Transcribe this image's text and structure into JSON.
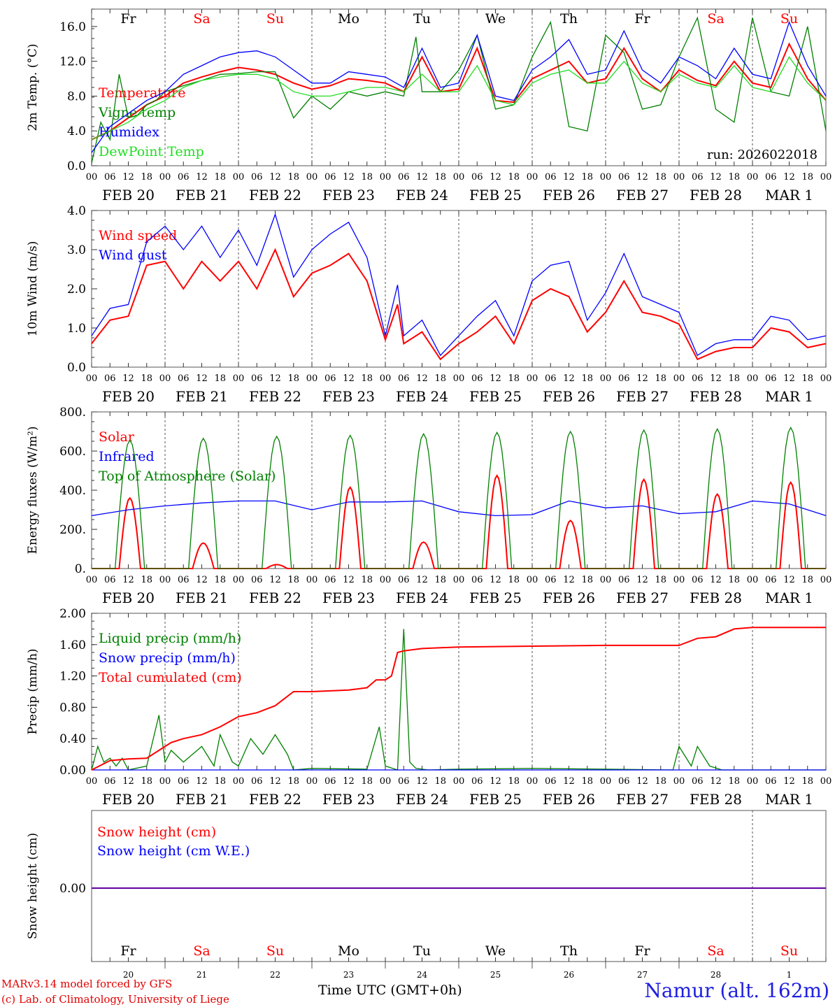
{
  "run_label": "run: 2026022018",
  "weekdays_top": [
    "Fr",
    "Sa",
    "Su",
    "Mo",
    "Tu",
    "We",
    "Th",
    "Fr",
    "Sa",
    "Su"
  ],
  "weekend_days": [
    "Sa",
    "Su"
  ],
  "date_labels": [
    "FEB 20",
    "FEB 21",
    "FEB 22",
    "FEB 23",
    "FEB 24",
    "FEB 25",
    "FEB 26",
    "FEB 27",
    "FEB 28",
    "MAR  1"
  ],
  "hour_labels": [
    "00",
    "06",
    "12",
    "18"
  ],
  "bottom_day_numbers": [
    "20",
    "21",
    "22",
    "23",
    "24",
    "25",
    "26",
    "27",
    "28",
    "1"
  ],
  "footer": {
    "model_line": "MARv3.14 model forced by GFS",
    "credit_line": "(c) Lab. of Climatology, University of Liege",
    "time_axis": "Time UTC (GMT+0h)",
    "location": "Namur (alt. 162m)"
  },
  "colors": {
    "red": "#ff0000",
    "blue": "#0000ff",
    "green": "#008000",
    "lightgreen": "#22dd22",
    "weekday": "#000000",
    "weekend": "#ff0000"
  },
  "chart_data": [
    {
      "type": "line",
      "ylabel": "2m Temp. (°C)",
      "ylim": [
        0,
        18
      ],
      "yticks": [
        "0.0",
        "4.0",
        "8.0",
        "12.0",
        "16.0"
      ],
      "x_unit": "hours since FEB 20 00 UTC",
      "series": [
        {
          "name": "Temperature",
          "color": "red",
          "x": [
            0,
            6,
            12,
            18,
            24,
            30,
            36,
            42,
            48,
            54,
            60,
            66,
            72,
            78,
            84,
            90,
            96,
            102,
            108,
            114,
            120,
            126,
            132,
            138,
            144,
            150,
            156,
            162,
            168,
            174,
            180,
            186,
            192,
            198,
            204,
            210,
            216,
            222,
            228,
            234,
            240
          ],
          "values": [
            3.0,
            4.0,
            5.5,
            7.0,
            8.0,
            9.5,
            10.2,
            10.8,
            11.3,
            11.0,
            10.5,
            9.5,
            8.8,
            9.2,
            10.0,
            9.8,
            9.5,
            8.5,
            12.5,
            8.5,
            8.8,
            13.5,
            7.5,
            7.3,
            10.0,
            11.0,
            12.0,
            9.5,
            10.0,
            13.5,
            10.0,
            8.5,
            11.0,
            9.8,
            9.2,
            12.0,
            9.5,
            9.0,
            14.0,
            10.0,
            7.5
          ]
        },
        {
          "name": "Vigne temp",
          "color": "green",
          "x": [
            0,
            3,
            6,
            9,
            12,
            15,
            18,
            21,
            24,
            30,
            36,
            42,
            48,
            54,
            60,
            66,
            72,
            78,
            84,
            90,
            96,
            102,
            106,
            108,
            114,
            120,
            126,
            132,
            138,
            144,
            150,
            156,
            162,
            168,
            174,
            180,
            186,
            192,
            198,
            204,
            210,
            216,
            222,
            228,
            234,
            240
          ],
          "values": [
            0.3,
            5.0,
            3.0,
            10.5,
            5.5,
            5.8,
            7.0,
            7.5,
            8.5,
            9.2,
            9.8,
            10.5,
            10.6,
            10.8,
            10.8,
            5.5,
            8.0,
            6.5,
            8.5,
            8.0,
            8.5,
            8.0,
            14.8,
            8.5,
            8.5,
            11.0,
            15.0,
            6.5,
            7.0,
            12.5,
            16.5,
            4.5,
            4.0,
            15.0,
            13.0,
            6.5,
            7.0,
            12.5,
            17.0,
            6.5,
            5.0,
            17.0,
            8.5,
            8.0,
            16.0,
            4.0
          ]
        },
        {
          "name": "Humidex",
          "color": "blue",
          "x": [
            0,
            6,
            12,
            18,
            24,
            30,
            36,
            42,
            48,
            54,
            60,
            66,
            72,
            78,
            84,
            90,
            96,
            102,
            108,
            114,
            120,
            126,
            132,
            138,
            144,
            150,
            156,
            162,
            168,
            174,
            180,
            186,
            192,
            198,
            204,
            210,
            216,
            222,
            228,
            234,
            240
          ],
          "values": [
            1.5,
            4.5,
            6.0,
            7.5,
            8.5,
            10.5,
            11.5,
            12.5,
            13.0,
            13.2,
            12.5,
            11.0,
            9.5,
            9.5,
            10.8,
            10.5,
            10.2,
            9.0,
            13.5,
            9.0,
            9.5,
            15.0,
            8.0,
            7.5,
            11.0,
            12.5,
            14.5,
            10.5,
            11.0,
            15.5,
            11.0,
            9.5,
            12.5,
            11.5,
            10.0,
            13.5,
            10.5,
            10.0,
            16.5,
            11.5,
            8.0
          ]
        },
        {
          "name": "DewPoint Temp",
          "color": "lightgreen",
          "x": [
            0,
            6,
            12,
            18,
            24,
            30,
            36,
            42,
            48,
            54,
            60,
            66,
            72,
            78,
            84,
            90,
            96,
            102,
            108,
            114,
            120,
            126,
            132,
            138,
            144,
            150,
            156,
            162,
            168,
            174,
            180,
            186,
            192,
            198,
            204,
            210,
            216,
            222,
            228,
            234,
            240
          ],
          "values": [
            3.0,
            4.0,
            5.0,
            6.5,
            7.5,
            9.0,
            9.8,
            10.2,
            10.5,
            10.5,
            10.0,
            8.5,
            8.0,
            8.0,
            8.5,
            9.0,
            9.0,
            8.5,
            10.5,
            8.5,
            8.5,
            11.5,
            7.5,
            7.0,
            9.5,
            10.5,
            11.0,
            9.5,
            9.5,
            12.0,
            9.5,
            8.5,
            10.5,
            9.5,
            9.0,
            11.5,
            9.0,
            8.5,
            12.5,
            9.5,
            7.5
          ]
        }
      ]
    },
    {
      "type": "line",
      "ylabel": "10m Wind (m/s)",
      "ylim": [
        0,
        4
      ],
      "yticks": [
        "0.0",
        "1.0",
        "2.0",
        "3.0",
        "4.0"
      ],
      "series": [
        {
          "name": "Wind speed",
          "color": "red",
          "x": [
            0,
            6,
            12,
            18,
            24,
            30,
            36,
            42,
            48,
            54,
            60,
            66,
            72,
            78,
            84,
            90,
            96,
            100,
            102,
            108,
            114,
            120,
            126,
            132,
            138,
            144,
            150,
            156,
            162,
            168,
            174,
            180,
            186,
            192,
            198,
            204,
            210,
            216,
            222,
            228,
            234,
            240
          ],
          "values": [
            0.6,
            1.2,
            1.3,
            2.6,
            2.7,
            2.0,
            2.7,
            2.2,
            2.7,
            2.0,
            3.0,
            1.8,
            2.4,
            2.6,
            2.9,
            2.2,
            0.7,
            1.6,
            0.6,
            0.9,
            0.2,
            0.6,
            0.9,
            1.3,
            0.6,
            1.7,
            2.0,
            1.8,
            0.9,
            1.4,
            2.2,
            1.4,
            1.3,
            1.1,
            0.2,
            0.4,
            0.5,
            0.5,
            1.0,
            0.9,
            0.5,
            0.6
          ]
        },
        {
          "name": "Wind gust",
          "color": "blue",
          "x": [
            0,
            6,
            12,
            18,
            24,
            30,
            36,
            42,
            48,
            54,
            60,
            66,
            72,
            78,
            84,
            90,
            96,
            100,
            102,
            108,
            114,
            120,
            126,
            132,
            138,
            144,
            150,
            156,
            162,
            168,
            174,
            180,
            186,
            192,
            198,
            204,
            210,
            216,
            222,
            228,
            234,
            240
          ],
          "values": [
            0.8,
            1.5,
            1.6,
            3.2,
            3.6,
            3.0,
            3.6,
            2.8,
            3.5,
            2.6,
            3.9,
            2.3,
            3.0,
            3.4,
            3.7,
            2.8,
            0.8,
            2.1,
            0.8,
            1.2,
            0.3,
            0.8,
            1.3,
            1.7,
            0.8,
            2.2,
            2.6,
            2.7,
            1.2,
            1.9,
            2.9,
            1.8,
            1.6,
            1.4,
            0.3,
            0.6,
            0.7,
            0.7,
            1.3,
            1.2,
            0.7,
            0.8
          ]
        }
      ]
    },
    {
      "type": "line",
      "ylabel": "Energy fluxes (W/m²)",
      "ylim": [
        0,
        800
      ],
      "yticks": [
        "0.",
        "200.",
        "400.",
        "600.",
        "800."
      ],
      "series": [
        {
          "name": "Solar",
          "color": "red",
          "day_peaks": [
            360,
            130,
            20,
            415,
            135,
            475,
            245,
            455,
            380,
            440
          ]
        },
        {
          "name": "Infrared",
          "color": "blue",
          "x": [
            0,
            12,
            24,
            36,
            48,
            60,
            72,
            84,
            96,
            108,
            120,
            132,
            144,
            156,
            168,
            180,
            192,
            204,
            216,
            228,
            240
          ],
          "values": [
            270,
            300,
            320,
            335,
            345,
            345,
            300,
            340,
            340,
            345,
            290,
            270,
            275,
            345,
            310,
            320,
            280,
            290,
            345,
            330,
            270
          ]
        },
        {
          "name": "Top of Atmosphere (Solar)",
          "color": "green",
          "day_peaks": [
            655,
            665,
            675,
            680,
            688,
            695,
            700,
            707,
            713,
            720
          ]
        }
      ]
    },
    {
      "type": "line",
      "ylabel": "Precip (mm/h)",
      "ylim": [
        0,
        2
      ],
      "yticks": [
        "0.00",
        "0.40",
        "0.80",
        "1.20",
        "1.60",
        "2.00"
      ],
      "series": [
        {
          "name": "Liquid precip (mm/h)",
          "color": "green",
          "x": [
            0,
            2,
            4,
            6,
            8,
            10,
            12,
            18,
            22,
            24,
            26,
            30,
            36,
            40,
            42,
            46,
            48,
            52,
            56,
            60,
            64,
            66,
            72,
            90,
            94,
            96,
            100,
            102,
            104,
            106,
            110,
            120,
            144,
            168,
            190,
            192,
            196,
            198,
            202,
            206,
            240
          ],
          "values": [
            0.0,
            0.3,
            0.1,
            0.15,
            0.05,
            0.15,
            0.0,
            0.05,
            0.7,
            0.1,
            0.25,
            0.1,
            0.3,
            0.05,
            0.45,
            0.1,
            0.05,
            0.4,
            0.2,
            0.45,
            0.2,
            0.0,
            0.02,
            0.01,
            0.55,
            0.05,
            0.0,
            1.8,
            0.1,
            0.02,
            0.0,
            0.01,
            0.02,
            0.01,
            0.0,
            0.3,
            0.05,
            0.3,
            0.05,
            0.0,
            0.0
          ]
        },
        {
          "name": "Snow precip (mm/h)",
          "color": "blue",
          "x": [
            0,
            240
          ],
          "values": [
            0,
            0
          ]
        },
        {
          "name": "Total cumulated (cm)",
          "color": "red",
          "x": [
            0,
            6,
            12,
            18,
            22,
            26,
            30,
            36,
            42,
            48,
            54,
            60,
            66,
            72,
            84,
            90,
            93,
            96,
            98,
            100,
            102,
            104,
            108,
            120,
            144,
            168,
            180,
            192,
            198,
            204,
            210,
            216,
            240
          ],
          "values": [
            0.0,
            0.12,
            0.14,
            0.15,
            0.25,
            0.35,
            0.4,
            0.45,
            0.55,
            0.68,
            0.73,
            0.82,
            1.0,
            1.0,
            1.02,
            1.05,
            1.15,
            1.15,
            1.2,
            1.5,
            1.52,
            1.53,
            1.55,
            1.57,
            1.58,
            1.59,
            1.59,
            1.59,
            1.68,
            1.7,
            1.8,
            1.82,
            1.82
          ]
        }
      ]
    },
    {
      "type": "line",
      "ylabel": "Snow height (cm)",
      "yticks": [
        "0.00"
      ],
      "series": [
        {
          "name": "Snow height (cm)",
          "color": "red",
          "x": [
            0,
            240
          ],
          "values": [
            0,
            0
          ]
        },
        {
          "name": "Snow height (cm W.E.)",
          "color": "blue",
          "x": [
            0,
            240
          ],
          "values": [
            0,
            0
          ]
        }
      ]
    }
  ]
}
